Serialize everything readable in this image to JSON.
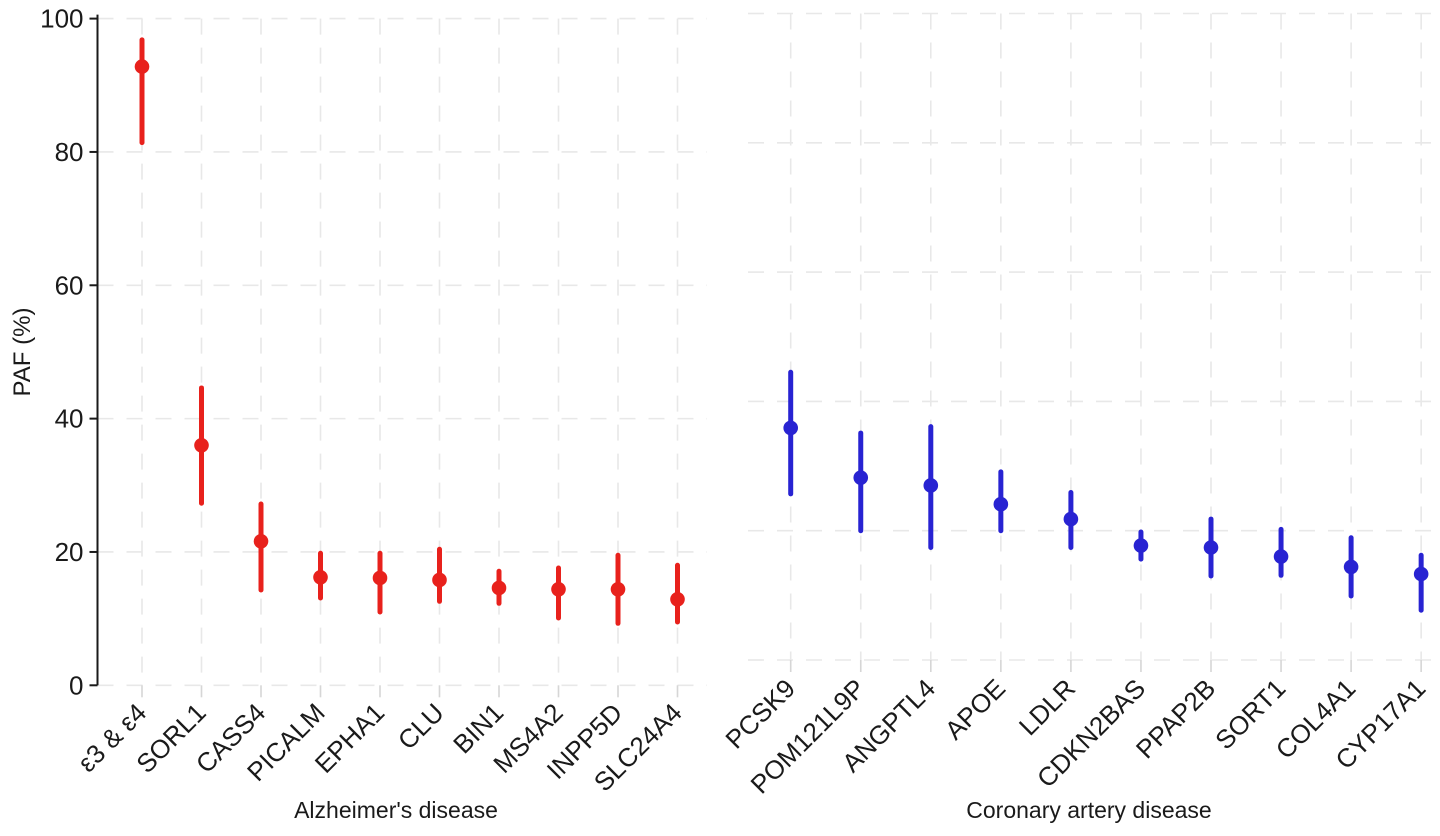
{
  "chart_data": [
    {
      "type": "scatter",
      "panel_label": "Alzheimer's disease",
      "ylabel": "PAF (%)",
      "ylim": [
        0,
        100
      ],
      "yticks": [
        0,
        20,
        40,
        60,
        80,
        100
      ],
      "grid": "dashed major gridlines, x and y",
      "legend": false,
      "color": "#e8211c",
      "marker": "point with vertical confidence interval bar, no caps",
      "categories": [
        "ε3 & ε4",
        "SORL1",
        "CASS4",
        "PICALM",
        "EPHA1",
        "CLU",
        "BIN1",
        "MS4A2",
        "INPP5D",
        "SLC24A4"
      ],
      "points": [
        {
          "label": "ε3 & ε4",
          "paf": 92.8,
          "ci_low": 81.4,
          "ci_high": 96.8
        },
        {
          "label": "SORL1",
          "paf": 36.0,
          "ci_low": 27.3,
          "ci_high": 44.6
        },
        {
          "label": "CASS4",
          "paf": 21.6,
          "ci_low": 14.3,
          "ci_high": 27.2
        },
        {
          "label": "PICALM",
          "paf": 16.2,
          "ci_low": 13.1,
          "ci_high": 19.8
        },
        {
          "label": "EPHA1",
          "paf": 16.1,
          "ci_low": 11.0,
          "ci_high": 19.8
        },
        {
          "label": "CLU",
          "paf": 15.8,
          "ci_low": 12.6,
          "ci_high": 20.4
        },
        {
          "label": "BIN1",
          "paf": 14.6,
          "ci_low": 12.3,
          "ci_high": 17.1
        },
        {
          "label": "MS4A2",
          "paf": 14.4,
          "ci_low": 10.1,
          "ci_high": 17.6
        },
        {
          "label": "INPP5D",
          "paf": 14.4,
          "ci_low": 9.3,
          "ci_high": 19.5
        },
        {
          "label": "SLC24A4",
          "paf": 12.9,
          "ci_low": 9.5,
          "ci_high": 18.0
        }
      ]
    },
    {
      "type": "scatter",
      "panel_label": "Coronary artery disease",
      "ylabel": "PAF (%)",
      "ylim": [
        0,
        100
      ],
      "yticks": [
        0,
        20,
        40,
        60,
        80,
        100
      ],
      "grid": "dashed major gridlines, x and y",
      "legend": false,
      "color": "#2823d2",
      "marker": "point with vertical confidence interval bar, no caps",
      "categories": [
        "PCSK9",
        "POM121L9P",
        "ANGPTL4",
        "APOE",
        "LDLR",
        "CDKN2BAS",
        "PPAP2B",
        "SORT1",
        "COL4A1",
        "CYP17A1"
      ],
      "points": [
        {
          "label": "PCSK9",
          "paf": 35.9,
          "ci_low": 25.7,
          "ci_high": 44.5
        },
        {
          "label": "POM121L9P",
          "paf": 28.2,
          "ci_low": 20.0,
          "ci_high": 35.1
        },
        {
          "label": "ANGPTL4",
          "paf": 27.0,
          "ci_low": 17.4,
          "ci_high": 36.1
        },
        {
          "label": "APOE",
          "paf": 24.1,
          "ci_low": 20.0,
          "ci_high": 29.1
        },
        {
          "label": "LDLR",
          "paf": 21.8,
          "ci_low": 17.4,
          "ci_high": 25.9
        },
        {
          "label": "CDKN2BAS",
          "paf": 17.7,
          "ci_low": 15.6,
          "ci_high": 19.8
        },
        {
          "label": "PPAP2B",
          "paf": 17.4,
          "ci_low": 13.0,
          "ci_high": 21.8
        },
        {
          "label": "SORT1",
          "paf": 16.0,
          "ci_low": 13.1,
          "ci_high": 20.2
        },
        {
          "label": "COL4A1",
          "paf": 14.4,
          "ci_low": 9.9,
          "ci_high": 18.9
        },
        {
          "label": "CYP17A1",
          "paf": 13.3,
          "ci_low": 7.7,
          "ci_high": 16.2
        }
      ]
    }
  ],
  "styles": {
    "grid_color": "#e8e8e8",
    "axis_color": "#1a1a1a",
    "x_tick_color": "#d6d6d6",
    "background": "#ffffff"
  }
}
